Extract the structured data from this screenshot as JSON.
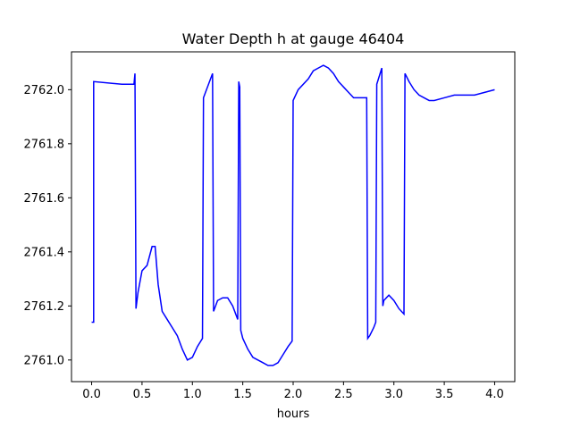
{
  "chart_data": {
    "type": "line",
    "title": "Water Depth h at gauge 46404",
    "xlabel": "hours",
    "ylabel": "",
    "xlim": [
      -0.2,
      4.2
    ],
    "ylim": [
      2760.92,
      2762.14
    ],
    "x_ticks": [
      0.0,
      0.5,
      1.0,
      1.5,
      2.0,
      2.5,
      3.0,
      3.5,
      4.0
    ],
    "x_tick_labels": [
      "0.0",
      "0.5",
      "1.0",
      "1.5",
      "2.0",
      "2.5",
      "3.0",
      "3.5",
      "4.0"
    ],
    "y_ticks": [
      2761.0,
      2761.2,
      2761.4,
      2761.6,
      2761.8,
      2762.0
    ],
    "y_tick_labels": [
      "2761.0",
      "2761.2",
      "2761.4",
      "2761.6",
      "2761.8",
      "2762.0"
    ],
    "grid": false,
    "line_color": "#0000ff",
    "series": [
      {
        "x": [
          0.0,
          0.02,
          0.02,
          0.3,
          0.42,
          0.43,
          0.44,
          0.46,
          0.5,
          0.55,
          0.6,
          0.63,
          0.66,
          0.7,
          0.75,
          0.8,
          0.85,
          0.9,
          0.95,
          1.0,
          1.05,
          1.1,
          1.11,
          1.2,
          1.21,
          1.25,
          1.3,
          1.35,
          1.4,
          1.45,
          1.46,
          1.47,
          1.48,
          1.5,
          1.55,
          1.6,
          1.65,
          1.7,
          1.75,
          1.8,
          1.85,
          1.9,
          1.95,
          1.99,
          2.0,
          2.05,
          2.15,
          2.2,
          2.25,
          2.3,
          2.35,
          2.4,
          2.45,
          2.5,
          2.55,
          2.6,
          2.65,
          2.7,
          2.73,
          2.74,
          2.76,
          2.8,
          2.82,
          2.83,
          2.88,
          2.89,
          2.9,
          2.95,
          3.0,
          3.05,
          3.1,
          3.11,
          3.15,
          3.2,
          3.25,
          3.3,
          3.35,
          3.4,
          3.5,
          3.6,
          3.7,
          3.8,
          3.9,
          4.0
        ],
        "values": [
          2761.14,
          2761.14,
          2762.03,
          2762.02,
          2762.02,
          2762.06,
          2761.19,
          2761.25,
          2761.33,
          2761.35,
          2761.42,
          2761.42,
          2761.28,
          2761.18,
          2761.15,
          2761.12,
          2761.09,
          2761.04,
          2761.0,
          2761.01,
          2761.05,
          2761.08,
          2761.97,
          2762.06,
          2761.18,
          2761.22,
          2761.23,
          2761.23,
          2761.2,
          2761.15,
          2762.03,
          2762.01,
          2761.11,
          2761.08,
          2761.04,
          2761.01,
          2761.0,
          2760.99,
          2760.98,
          2760.98,
          2760.99,
          2761.02,
          2761.05,
          2761.07,
          2761.96,
          2762.0,
          2762.04,
          2762.07,
          2762.08,
          2762.09,
          2762.08,
          2762.06,
          2762.03,
          2762.01,
          2761.99,
          2761.97,
          2761.97,
          2761.97,
          2761.97,
          2761.08,
          2761.09,
          2761.12,
          2761.14,
          2762.02,
          2762.08,
          2761.2,
          2761.22,
          2761.24,
          2761.22,
          2761.19,
          2761.17,
          2762.06,
          2762.03,
          2762.0,
          2761.98,
          2761.97,
          2761.96,
          2761.96,
          2761.97,
          2761.98,
          2761.98,
          2761.98,
          2761.99,
          2762.0
        ]
      }
    ]
  }
}
